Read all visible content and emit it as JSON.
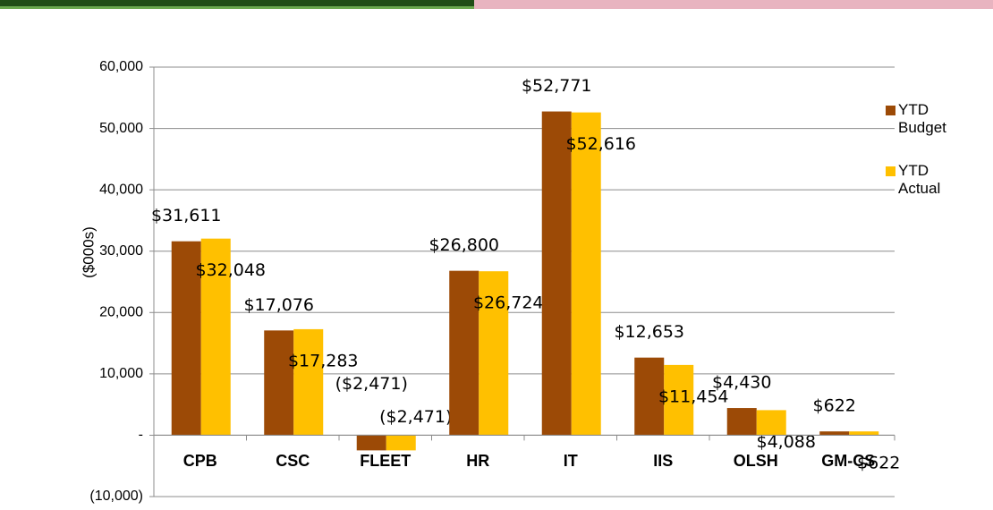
{
  "chart_data": {
    "type": "bar",
    "y_label": "($000s)",
    "categories": [
      "CPB",
      "CSC",
      "FLEET",
      "HR",
      "IT",
      "IIS",
      "OLSH",
      "GM-CS"
    ],
    "series": [
      {
        "name": "YTD Budget",
        "color": "#9c4a06",
        "values": [
          31611,
          17076,
          -2471,
          26800,
          52771,
          12653,
          4430,
          622
        ],
        "value_labels": [
          "$31,611",
          "$17,076",
          "($2,471)",
          "$26,800",
          "$52,771",
          "$12,653",
          "$4,430",
          "$622"
        ]
      },
      {
        "name": "YTD Actual",
        "color": "#ffc000",
        "values": [
          32048,
          17283,
          -2471,
          26724,
          52616,
          11454,
          4088,
          622
        ],
        "value_labels": [
          "$32,048",
          "$17,283",
          "($2,471)",
          "$26,724",
          "$52,616",
          "$11,454",
          "$4,088",
          "$622"
        ]
      }
    ],
    "ylim": [
      -10000,
      60000
    ],
    "yticks": [
      {
        "value": -10000,
        "label": "(10,000)"
      },
      {
        "value": 0,
        "label": "-"
      },
      {
        "value": 10000,
        "label": "10,000"
      },
      {
        "value": 20000,
        "label": "20,000"
      },
      {
        "value": 30000,
        "label": "30,000"
      },
      {
        "value": 40000,
        "label": "40,000"
      },
      {
        "value": 50000,
        "label": "50,000"
      },
      {
        "value": 60000,
        "label": "60,000"
      }
    ],
    "grid": true,
    "legend": "right"
  }
}
